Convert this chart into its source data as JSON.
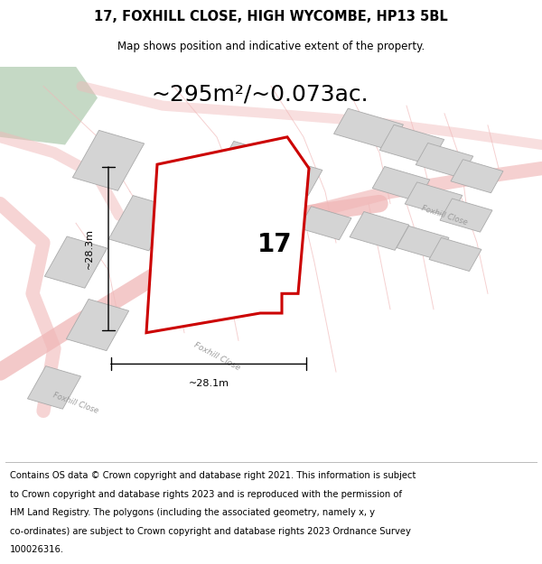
{
  "title": "17, FOXHILL CLOSE, HIGH WYCOMBE, HP13 5BL",
  "subtitle": "Map shows position and indicative extent of the property.",
  "area_label": "~295m²/~0.073ac.",
  "plot_number": "17",
  "dim_vertical": "~28.3m",
  "dim_horizontal": "~28.1m",
  "footer_lines": [
    "Contains OS data © Crown copyright and database right 2021. This information is subject",
    "to Crown copyright and database rights 2023 and is reproduced with the permission of",
    "HM Land Registry. The polygons (including the associated geometry, namely x, y",
    "co-ordinates) are subject to Crown copyright and database rights 2023 Ordnance Survey",
    "100026316."
  ],
  "map_bg": "#eeecec",
  "road_color_light": "#f0b8b8",
  "building_color": "#d4d4d4",
  "building_edge": "#aaaaaa",
  "green_color": "#c5d9c5",
  "plot_fill": "#ffffff",
  "plot_edge": "#cc0000",
  "plot_edge_width": 2.2,
  "road_label_color": "#999999",
  "title_fontsize": 10.5,
  "subtitle_fontsize": 8.5,
  "area_fontsize": 18,
  "plot_num_fontsize": 20,
  "dim_fontsize": 8,
  "footer_fontsize": 7.2
}
